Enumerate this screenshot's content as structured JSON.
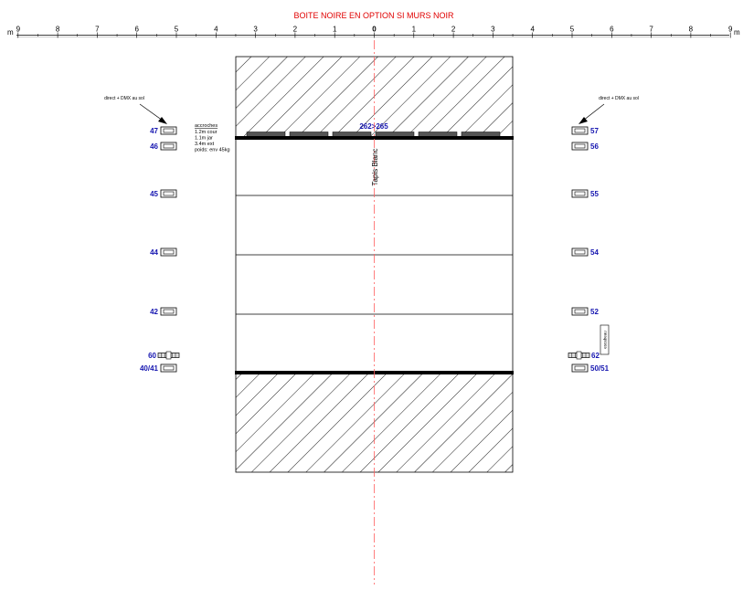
{
  "title": "BOITE NOIRE EN OPTION SI MURS NOIR",
  "ruler": {
    "left_labels": [
      "9",
      "8",
      "7",
      "6",
      "5",
      "4",
      "3",
      "2",
      "1"
    ],
    "center_label": "0",
    "right_labels": [
      "1",
      "2",
      "3",
      "4",
      "5",
      "6",
      "7",
      "8",
      "9"
    ],
    "unit": "m"
  },
  "stage_label": "Tapis Blanc",
  "top_batten_label": "262>265",
  "notes": {
    "heading": "accroches",
    "lines": [
      "1.2m cour",
      "1.1m jar",
      "3.4m ext",
      "poids: env 45kg"
    ]
  },
  "dmx_left": "direct + DMX au sol",
  "dmx_right": "direct + DMX au sol",
  "escabeau": "escabeau",
  "fixtures_left": [
    {
      "label": "47",
      "kind": "box"
    },
    {
      "label": "46",
      "kind": "box"
    },
    {
      "label": "45",
      "kind": "box"
    },
    {
      "label": "44",
      "kind": "box"
    },
    {
      "label": "42",
      "kind": "box"
    },
    {
      "label": "60",
      "kind": "bar"
    },
    {
      "label": "40/41",
      "kind": "box"
    }
  ],
  "fixtures_right": [
    {
      "label": "57",
      "kind": "box"
    },
    {
      "label": "56",
      "kind": "box"
    },
    {
      "label": "55",
      "kind": "box"
    },
    {
      "label": "54",
      "kind": "box"
    },
    {
      "label": "52",
      "kind": "box"
    },
    {
      "label": "62",
      "kind": "bar"
    },
    {
      "label": "50/51",
      "kind": "box"
    }
  ],
  "colors": {
    "title": "#e00000",
    "fixture_label": "#1515b0",
    "batten_label": "#1515b0",
    "centerline": "#ff6060",
    "line": "#000000"
  }
}
